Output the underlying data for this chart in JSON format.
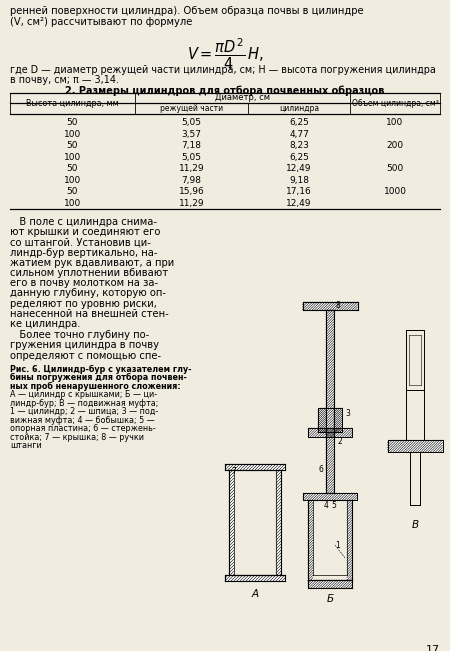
{
  "bg_color": "#f0ece0",
  "page_number": "17",
  "top_text_line1": "ренней поверхности цилиндра). Объем образца почвы в цилиндре",
  "top_text_line2": "(V, см²) рассчитывают по формуле",
  "formula_note": "где D — диаметр режущей части цилиндра, см; H — высота погружения цилиндра\nв почву, см; π — 3,14.",
  "table_title": "2. Размеры цилиндров для отбора почвенных образцов",
  "table_col1_header": "Высота цилиндра, мм",
  "table_col2_header": "Диаметр, см",
  "table_col2a_header": "режущей части",
  "table_col2b_header": "цилиндра",
  "table_col3_header": "Объем цилиндра, см³",
  "table_data": [
    [
      "50",
      "5,05",
      "6,25",
      "100"
    ],
    [
      "100",
      "3,57",
      "4,77",
      ""
    ],
    [
      "50",
      "7,18",
      "8,23",
      "200"
    ],
    [
      "100",
      "5,05",
      "6,25",
      ""
    ],
    [
      "50",
      "11,29",
      "12,49",
      "500"
    ],
    [
      "100",
      "7,98",
      "9,18",
      ""
    ],
    [
      "50",
      "15,96",
      "17,16",
      "1000"
    ],
    [
      "100",
      "11,29",
      "12,49",
      ""
    ]
  ],
  "para1_lines": [
    "   В поле с цилиндра снима-",
    "ют крышки и соединяют его",
    "со штангой. Установив ци-",
    "линдр-бур вертикально, на-",
    "жатием рук вдавливают, а при",
    "сильном уплотнении вбивают",
    "его в почву молотком на за-",
    "данную глубину, которую оп-",
    "ределяют по уровню риски,",
    "нанесенной на внешней стен-",
    "ке цилиндра."
  ],
  "para2_lines": [
    "   Более точно глубину по-",
    "гружения цилиндра в почву",
    "определяют с помощью спе-"
  ],
  "fig_caption_bold": "Рис. 6. Цилиндр-бур с указателем глу-\nбины погружения для отбора почвен-\nных проб ненарушенного сложения:",
  "fig_caption_normal": "А — цилиндр с крышками; Б — ци-\nлиндр-бур; В — подвижная муфта;\n1 — цилиндр; 2 — шпица; 3 — под-\nвижная муфта; 4 — бобышка; 5 —\nопорная пластина; 6 — стержень-\nстойка; 7 — крышка; 8 — ручки\nштанги"
}
